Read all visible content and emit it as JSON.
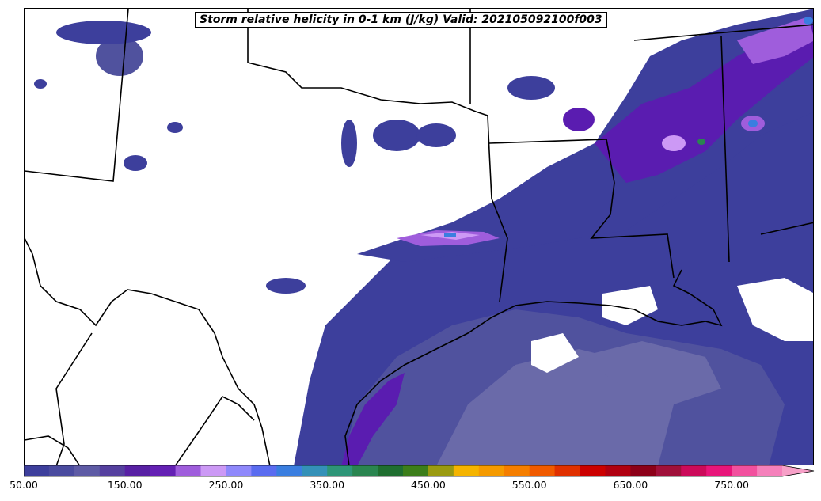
{
  "title": "Storm relative helicity in 0-1 km (J/kg) Valid: 202105092100f003",
  "colorbar": {
    "min": 50,
    "max": 800,
    "step": 25,
    "extend": "max",
    "tick_labels": [
      "50.00",
      "150.00",
      "250.00",
      "350.00",
      "450.00",
      "550.00",
      "650.00",
      "750.00"
    ],
    "tick_values": [
      50,
      150,
      250,
      350,
      450,
      550,
      650,
      750
    ],
    "colors": [
      "#3d3f9c",
      "#4a4b9f",
      "#5e5ba5",
      "#55409f",
      "#5820a4",
      "#6420b4",
      "#9f5ddc",
      "#cc99f5",
      "#8f88fb",
      "#5a6cf0",
      "#3a7ee0",
      "#3491b8",
      "#2e9577",
      "#2a8550",
      "#1f6e30",
      "#3c7e1a",
      "#9a9a10",
      "#f5b400",
      "#f59a00",
      "#f57e00",
      "#f05a00",
      "#e03000",
      "#cc0000",
      "#b00010",
      "#8c0018",
      "#a0103a",
      "#cc0a5a",
      "#e8157a",
      "#f2509e",
      "#f580bb"
    ],
    "extend_color": "#f7a0c8"
  },
  "map": {
    "fill_colors": {
      "level1": "#3d3f9c",
      "level2": "#50529e",
      "level3": "#6a6aa9",
      "level4": "#5a1cb0",
      "level5": "#9f5ddc",
      "level6": "#cc99f5",
      "level7": "#3a7ee0",
      "level8": "#2a8550"
    }
  }
}
